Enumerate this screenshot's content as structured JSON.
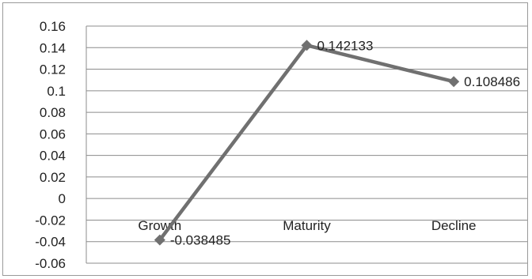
{
  "chart_data": {
    "type": "line",
    "title": "",
    "xlabel": "",
    "ylabel": "",
    "categories": [
      "Growth",
      "Maturity",
      "Decline"
    ],
    "series": [
      {
        "values": [
          -0.038485,
          0.142133,
          0.108486
        ],
        "color": "#707070",
        "marker": "diamond"
      }
    ],
    "data_labels": [
      "-0.038485",
      "0.142133",
      "0.108486"
    ],
    "ylim": [
      -0.06,
      0.16
    ],
    "ytick_step": 0.02,
    "ytick_labels": [
      "0.16",
      "0.14",
      "0.12",
      "0.1",
      "0.08",
      "0.06",
      "0.04",
      "0.02",
      "0",
      "-0.02",
      "-0.04",
      "-0.06"
    ],
    "grid": true,
    "legend": "none"
  }
}
